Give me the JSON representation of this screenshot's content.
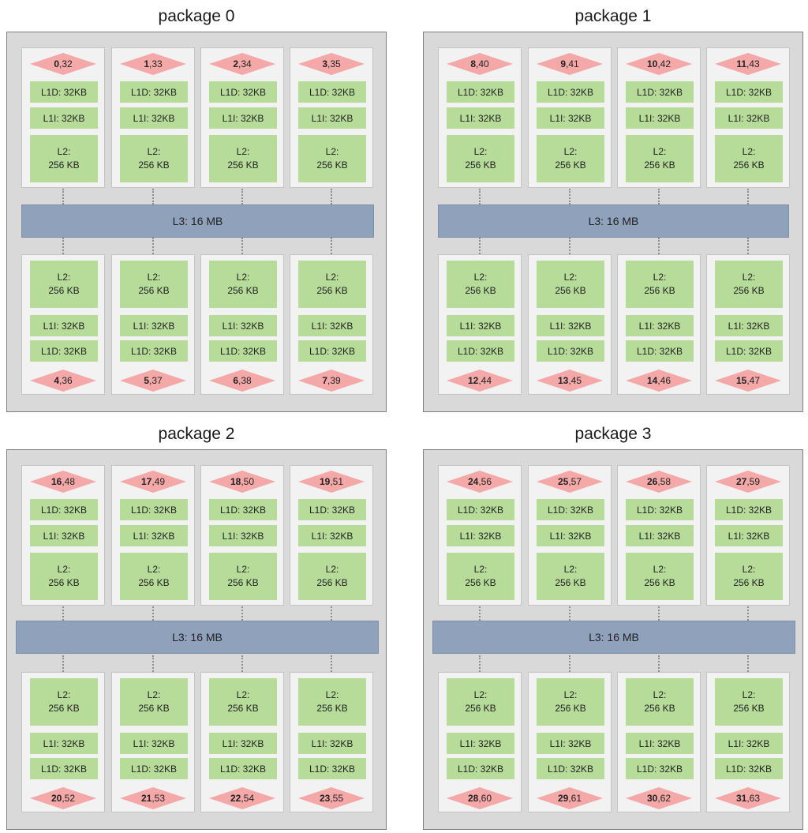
{
  "labels": {
    "l1d": "L1D: 32KB",
    "l1i": "L1I: 32KB",
    "l2_line1": "L2:",
    "l2_line2": "256 KB",
    "l3": "L3: 16 MB"
  },
  "colors": {
    "package_bg": "#d9d9d9",
    "core_bg": "#f2f2f2",
    "cache_l1_l2": "#b7dc9a",
    "cache_l3": "#8fa1bb",
    "thread_diamond": "#f4a8a8"
  },
  "packages": [
    {
      "title": "package 0",
      "top_cores": [
        {
          "primary": "0",
          "secondary": ",32"
        },
        {
          "primary": "1",
          "secondary": ",33"
        },
        {
          "primary": "2",
          "secondary": ",34"
        },
        {
          "primary": "3",
          "secondary": ",35"
        }
      ],
      "bottom_cores": [
        {
          "primary": "4",
          "secondary": ",36"
        },
        {
          "primary": "5",
          "secondary": ",37"
        },
        {
          "primary": "6",
          "secondary": ",38"
        },
        {
          "primary": "7",
          "secondary": ",39"
        }
      ]
    },
    {
      "title": "package 1",
      "top_cores": [
        {
          "primary": "8",
          "secondary": ",40"
        },
        {
          "primary": "9",
          "secondary": ",41"
        },
        {
          "primary": "10",
          "secondary": ",42"
        },
        {
          "primary": "11",
          "secondary": ",43"
        }
      ],
      "bottom_cores": [
        {
          "primary": "12",
          "secondary": ",44"
        },
        {
          "primary": "13",
          "secondary": ",45"
        },
        {
          "primary": "14",
          "secondary": ",46"
        },
        {
          "primary": "15",
          "secondary": ",47"
        }
      ]
    },
    {
      "title": "package 2",
      "top_cores": [
        {
          "primary": "16",
          "secondary": ",48"
        },
        {
          "primary": "17",
          "secondary": ",49"
        },
        {
          "primary": "18",
          "secondary": ",50"
        },
        {
          "primary": "19",
          "secondary": ",51"
        }
      ],
      "bottom_cores": [
        {
          "primary": "20",
          "secondary": ",52"
        },
        {
          "primary": "21",
          "secondary": ",53"
        },
        {
          "primary": "22",
          "secondary": ",54"
        },
        {
          "primary": "23",
          "secondary": ",55"
        }
      ]
    },
    {
      "title": "package 3",
      "top_cores": [
        {
          "primary": "24",
          "secondary": ",56"
        },
        {
          "primary": "25",
          "secondary": ",57"
        },
        {
          "primary": "26",
          "secondary": ",58"
        },
        {
          "primary": "27",
          "secondary": ",59"
        }
      ],
      "bottom_cores": [
        {
          "primary": "28",
          "secondary": ",60"
        },
        {
          "primary": "29",
          "secondary": ",61"
        },
        {
          "primary": "30",
          "secondary": ",62"
        },
        {
          "primary": "31",
          "secondary": ",63"
        }
      ]
    }
  ]
}
